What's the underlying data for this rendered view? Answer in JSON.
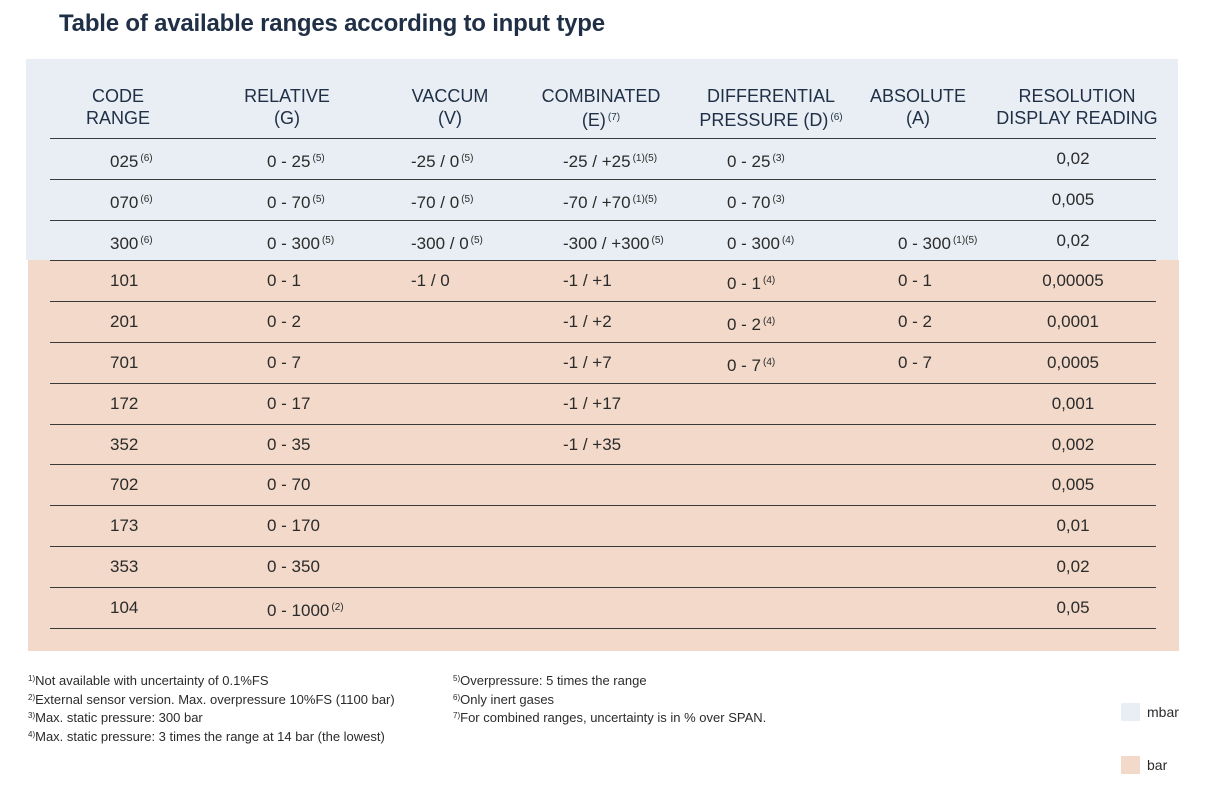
{
  "title": "Table of available ranges according to input type",
  "header": {
    "code": [
      "CODE",
      "RANGE"
    ],
    "relative": [
      "RELATIVE",
      "(G)"
    ],
    "vaccum": [
      "VACCUM",
      "(V)"
    ],
    "combinated": [
      "COMBINATED",
      "(E)"
    ],
    "combinated_sup": "(7)",
    "differential": [
      "DIFFERENTIAL",
      "PRESSURE (D)"
    ],
    "differential_sup": "(6)",
    "absolute": [
      "ABSOLUTE",
      "(A)"
    ],
    "resolution": [
      "RESOLUTION",
      "DISPLAY READING"
    ]
  },
  "rows": [
    {
      "code": "025",
      "code_sup": "(6)",
      "rel": "0 - 25",
      "rel_sup": "(5)",
      "vac": "-25 / 0",
      "vac_sup": "(5)",
      "comb": "-25 / +25",
      "comb_sup": "(1)(5)",
      "diff": "0 - 25",
      "diff_sup": "(3)",
      "abs": "",
      "abs_sup": "",
      "res": "0,02"
    },
    {
      "code": "070",
      "code_sup": "(6)",
      "rel": "0 - 70",
      "rel_sup": "(5)",
      "vac": "-70 / 0",
      "vac_sup": "(5)",
      "comb": "-70 / +70",
      "comb_sup": "(1)(5)",
      "diff": "0 - 70",
      "diff_sup": "(3)",
      "abs": "",
      "abs_sup": "",
      "res": "0,005"
    },
    {
      "code": "300",
      "code_sup": "(6)",
      "rel": "0 - 300",
      "rel_sup": "(5)",
      "vac": "-300 / 0",
      "vac_sup": "(5)",
      "comb": "-300 / +300",
      "comb_sup": "(5)",
      "diff": "0 - 300",
      "diff_sup": "(4)",
      "abs": "0 - 300",
      "abs_sup": "(1)(5)",
      "res": "0,02"
    },
    {
      "code": "101",
      "code_sup": "",
      "rel": "0 - 1",
      "rel_sup": "",
      "vac": "-1 / 0",
      "vac_sup": "",
      "comb": "-1 / +1",
      "comb_sup": "",
      "diff": "0 - 1",
      "diff_sup": "(4)",
      "abs": "0 - 1",
      "abs_sup": "",
      "res": "0,00005"
    },
    {
      "code": "201",
      "code_sup": "",
      "rel": "0 - 2",
      "rel_sup": "",
      "vac": "",
      "vac_sup": "",
      "comb": "-1 / +2",
      "comb_sup": "",
      "diff": "0 - 2",
      "diff_sup": "(4)",
      "abs": "0 - 2",
      "abs_sup": "",
      "res": "0,0001"
    },
    {
      "code": "701",
      "code_sup": "",
      "rel": "0 - 7",
      "rel_sup": "",
      "vac": "",
      "vac_sup": "",
      "comb": "-1 / +7",
      "comb_sup": "",
      "diff": "0 - 7",
      "diff_sup": "(4)",
      "abs": "0 - 7",
      "abs_sup": "",
      "res": "0,0005"
    },
    {
      "code": "172",
      "code_sup": "",
      "rel": "0 - 17",
      "rel_sup": "",
      "vac": "",
      "vac_sup": "",
      "comb": "-1 / +17",
      "comb_sup": "",
      "diff": "",
      "diff_sup": "",
      "abs": "",
      "abs_sup": "",
      "res": "0,001"
    },
    {
      "code": "352",
      "code_sup": "",
      "rel": "0 - 35",
      "rel_sup": "",
      "vac": "",
      "vac_sup": "",
      "comb": "-1 / +35",
      "comb_sup": "",
      "diff": "",
      "diff_sup": "",
      "abs": "",
      "abs_sup": "",
      "res": "0,002"
    },
    {
      "code": "702",
      "code_sup": "",
      "rel": "0 - 70",
      "rel_sup": "",
      "vac": "",
      "vac_sup": "",
      "comb": "",
      "comb_sup": "",
      "diff": "",
      "diff_sup": "",
      "abs": "",
      "abs_sup": "",
      "res": "0,005"
    },
    {
      "code": "173",
      "code_sup": "",
      "rel": "0 - 170",
      "rel_sup": "",
      "vac": "",
      "vac_sup": "",
      "comb": "",
      "comb_sup": "",
      "diff": "",
      "diff_sup": "",
      "abs": "",
      "abs_sup": "",
      "res": "0,01"
    },
    {
      "code": "353",
      "code_sup": "",
      "rel": "0 - 350",
      "rel_sup": "",
      "vac": "",
      "vac_sup": "",
      "comb": "",
      "comb_sup": "",
      "diff": "",
      "diff_sup": "",
      "abs": "",
      "abs_sup": "",
      "res": "0,02"
    },
    {
      "code": "104",
      "code_sup": "",
      "rel": "0 - 1000",
      "rel_sup": "(2)",
      "vac": "",
      "vac_sup": "",
      "comb": "",
      "comb_sup": "",
      "diff": "",
      "diff_sup": "",
      "abs": "",
      "abs_sup": "",
      "res": "0,05"
    }
  ],
  "footnotes_left": [
    {
      "mark": "1)",
      "text": "Not available with uncertainty of 0.1%FS"
    },
    {
      "mark": "2)",
      "text": "External sensor version. Max. overpressure 10%FS (1100 bar)"
    },
    {
      "mark": "3)",
      "text": "Max. static pressure: 300 bar"
    },
    {
      "mark": "4)",
      "text": "Max. static pressure: 3 times the range at 14 bar (the lowest)"
    }
  ],
  "footnotes_right": [
    {
      "mark": "5)",
      "text": "Overpressure: 5 times the range"
    },
    {
      "mark": "6)",
      "text": "Only inert gases"
    },
    {
      "mark": "7)",
      "text": "For combined ranges, uncertainty is in % over SPAN."
    }
  ],
  "legend": [
    {
      "label": "mbar",
      "color": "#e8eef3"
    },
    {
      "label": "bar",
      "color": "#f2d9c9"
    }
  ]
}
